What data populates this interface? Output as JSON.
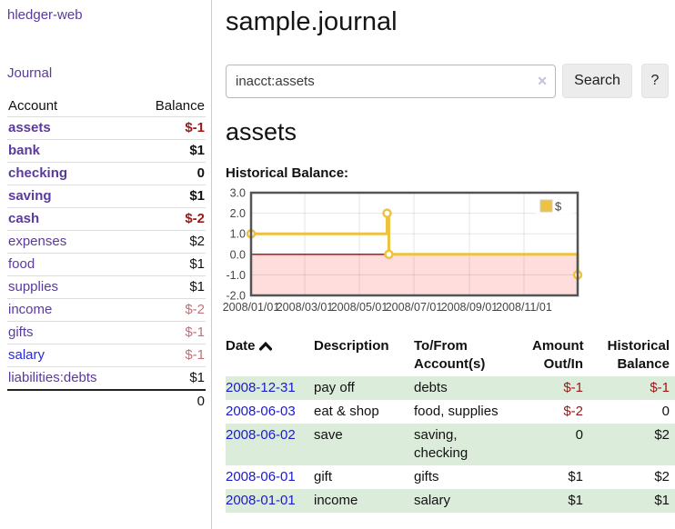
{
  "app": {
    "brand": "hledger-web"
  },
  "sidebar": {
    "journal_label": "Journal",
    "accounts": {
      "header_account": "Account",
      "header_balance": "Balance",
      "rows": [
        {
          "account": "assets",
          "balance": "$-1",
          "level": 1,
          "strong": true,
          "color": "purple",
          "balance_style": "neg-strong"
        },
        {
          "account": "bank",
          "balance": "$1",
          "level": 2,
          "strong": true,
          "color": "purple",
          "balance_style": ""
        },
        {
          "account": "checking",
          "balance": "0",
          "level": 3,
          "strong": true,
          "color": "purple",
          "balance_style": ""
        },
        {
          "account": "saving",
          "balance": "$1",
          "level": 3,
          "strong": true,
          "color": "purple",
          "balance_style": ""
        },
        {
          "account": "cash",
          "balance": "$-2",
          "level": 2,
          "strong": true,
          "color": "purple",
          "balance_style": "neg-strong"
        },
        {
          "account": "expenses",
          "balance": "$2",
          "level": 1,
          "strong": false,
          "color": "purple",
          "balance_style": ""
        },
        {
          "account": "food",
          "balance": "$1",
          "level": 2,
          "strong": false,
          "color": "purple",
          "balance_style": ""
        },
        {
          "account": "supplies",
          "balance": "$1",
          "level": 2,
          "strong": false,
          "color": "purple",
          "balance_style": ""
        },
        {
          "account": "income",
          "balance": "$-2",
          "level": 1,
          "strong": false,
          "color": "purple",
          "balance_style": "neg-soft"
        },
        {
          "account": "gifts",
          "balance": "$-1",
          "level": 2,
          "strong": false,
          "color": "purple",
          "balance_style": "neg-soft"
        },
        {
          "account": "salary",
          "balance": "$-1",
          "level": 2,
          "strong": false,
          "color": "blue",
          "balance_style": "neg-soft"
        },
        {
          "account": "liabilities:debts",
          "balance": "$1",
          "level": 1,
          "strong": false,
          "color": "purple",
          "balance_style": ""
        }
      ],
      "total": "0"
    }
  },
  "main": {
    "title": "sample.journal",
    "search": {
      "query": "inacct:assets",
      "clear_icon": "✕",
      "search_label": "Search",
      "help_label": "?"
    },
    "account_heading": "assets",
    "journal": {
      "headers": {
        "date": "Date",
        "description": "Description",
        "accounts_l1": "To/From",
        "accounts_l2": "Account(s)",
        "amount_l1": "Amount",
        "amount_l2": "Out/In",
        "balance_l1": "Historical",
        "balance_l2": "Balance"
      },
      "rows": [
        {
          "date": "2008-12-31",
          "description": "pay off",
          "accounts": "debts",
          "amount": "$-1",
          "amount_neg": true,
          "balance": "$-1",
          "balance_neg": true
        },
        {
          "date": "2008-06-03",
          "description": "eat & shop",
          "accounts": "food, supplies",
          "amount": "$-2",
          "amount_neg": true,
          "balance": "0",
          "balance_neg": false
        },
        {
          "date": "2008-06-02",
          "description": "save",
          "accounts": "saving,\nchecking",
          "amount": "0",
          "amount_neg": false,
          "balance": "$2",
          "balance_neg": false
        },
        {
          "date": "2008-06-01",
          "description": "gift",
          "accounts": "gifts",
          "amount": "$1",
          "amount_neg": false,
          "balance": "$2",
          "balance_neg": false
        },
        {
          "date": "2008-01-01",
          "description": "income",
          "accounts": "salary",
          "amount": "$1",
          "amount_neg": false,
          "balance": "$1",
          "balance_neg": false
        }
      ]
    }
  },
  "chart_data": {
    "type": "line",
    "title": "Historical Balance:",
    "step": true,
    "series": [
      {
        "name": "$",
        "color": "#edc240",
        "points": [
          {
            "date": "2008-01-01",
            "day": 0,
            "value": 1
          },
          {
            "date": "2008-06-01",
            "day": 152,
            "value": 2
          },
          {
            "date": "2008-06-03",
            "day": 154,
            "value": 0
          },
          {
            "date": "2008-12-31",
            "day": 365,
            "value": -1
          }
        ]
      }
    ],
    "ylim": [
      -2.0,
      3.0
    ],
    "yticks": [
      {
        "label": "3.0",
        "value": 3
      },
      {
        "label": "2.0",
        "value": 2
      },
      {
        "label": "1.0",
        "value": 1
      },
      {
        "label": "0.0",
        "value": 0
      },
      {
        "label": "-1.0",
        "value": -1
      },
      {
        "label": "-2.0",
        "value": -2
      }
    ],
    "xticks": [
      {
        "label": "2008/01/01",
        "day": 0
      },
      {
        "label": "2008/03/01",
        "day": 60
      },
      {
        "label": "2008/05/01",
        "day": 121
      },
      {
        "label": "2008/07/01",
        "day": 182
      },
      {
        "label": "2008/09/01",
        "day": 244
      },
      {
        "label": "2008/11/01",
        "day": 305
      }
    ],
    "x_range_days": 365,
    "grid": true,
    "legend_position": "top-right",
    "legend": {
      "label": "$",
      "swatch": "#edc240"
    },
    "negative_region_fill": "#ffdddd",
    "zero_line_color": "#aa0000"
  },
  "colors": {
    "purple": "#5b3a9e",
    "blue": "#2a2ad4",
    "date_blue": "#1a1acc",
    "neg_strong": "#9e1616",
    "neg_soft": "#c2707a",
    "row_green": "#dcecdb",
    "chart_gold": "#edc240",
    "chart_border": "#545454"
  }
}
